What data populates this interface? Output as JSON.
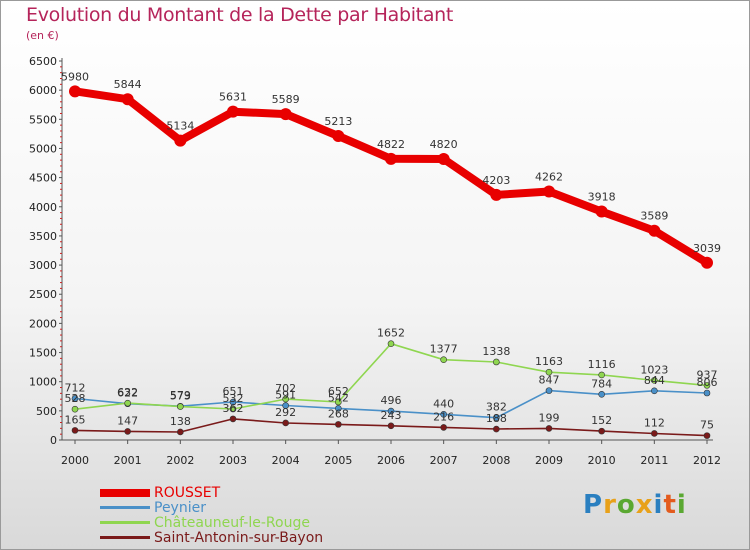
{
  "header": {
    "title": "Evolution du Montant de la Dette par Habitant",
    "subtitle": "(en €)"
  },
  "brand": {
    "logo_text": "Proxiti",
    "logo_letters": [
      {
        "char": "P",
        "color": "#2a7fc0"
      },
      {
        "char": "r",
        "color": "#e8a11a"
      },
      {
        "char": "o",
        "color": "#5aa832"
      },
      {
        "char": "x",
        "color": "#e8a11a"
      },
      {
        "char": "i",
        "color": "#2a7fc0"
      },
      {
        "char": "t",
        "color": "#e35b1e"
      },
      {
        "char": "i",
        "color": "#5aa832"
      }
    ]
  },
  "colors": {
    "title": "#b5245a",
    "axis_tick_marks": "#cc2222"
  },
  "chart_data": {
    "type": "line",
    "x": [
      "2000",
      "2001",
      "2002",
      "2003",
      "2004",
      "2005",
      "2006",
      "2007",
      "2008",
      "2009",
      "2010",
      "2011",
      "2012"
    ],
    "ylim": [
      0,
      6500
    ],
    "yticks": [
      0,
      500,
      1000,
      1500,
      2000,
      2500,
      3000,
      3500,
      4000,
      4500,
      5000,
      5500,
      6000,
      6500
    ],
    "grid": false,
    "legend_position": "bottom-left",
    "series": [
      {
        "name": "ROUSSET",
        "color": "#e80000",
        "emphasis": true,
        "values": [
          5980,
          5844,
          5134,
          5631,
          5589,
          5213,
          4822,
          4820,
          4203,
          4262,
          3918,
          3589,
          3039
        ],
        "labels": [
          "5980",
          "5844",
          "5134",
          "5631",
          "5589",
          "5213",
          "4822",
          "4820",
          "4203",
          "4262",
          "3918",
          "3589",
          "3039"
        ]
      },
      {
        "name": "Peynier",
        "color": "#4a90c8",
        "emphasis": false,
        "values": [
          712,
          622,
          579,
          651,
          591,
          542,
          496,
          440,
          382,
          847,
          784,
          844,
          806
        ],
        "labels": [
          "712",
          "622",
          "579",
          "651",
          "591",
          "542",
          "496",
          "440",
          "382",
          "847",
          "784",
          "844",
          "806"
        ]
      },
      {
        "name": "Châteauneuf-le-Rouge",
        "color": "#8fd650",
        "emphasis": false,
        "values": [
          528,
          632,
          573,
          532,
          702,
          652,
          1652,
          1377,
          1338,
          1163,
          1116,
          1023,
          937
        ],
        "labels": [
          "528",
          "632",
          "573",
          "532",
          "702",
          "652",
          "1652",
          "1377",
          "1338",
          "1163",
          "1116",
          "1023",
          "937"
        ]
      },
      {
        "name": "Saint-Antonin-sur-Bayon",
        "color": "#7a1a1a",
        "emphasis": false,
        "values": [
          165,
          147,
          138,
          362,
          292,
          268,
          243,
          216,
          188,
          199,
          152,
          112,
          75
        ],
        "labels": [
          "165",
          "147",
          "138",
          "362",
          "292",
          "268",
          "243",
          "216",
          "188",
          "199",
          "152",
          "112",
          "75"
        ]
      }
    ]
  }
}
